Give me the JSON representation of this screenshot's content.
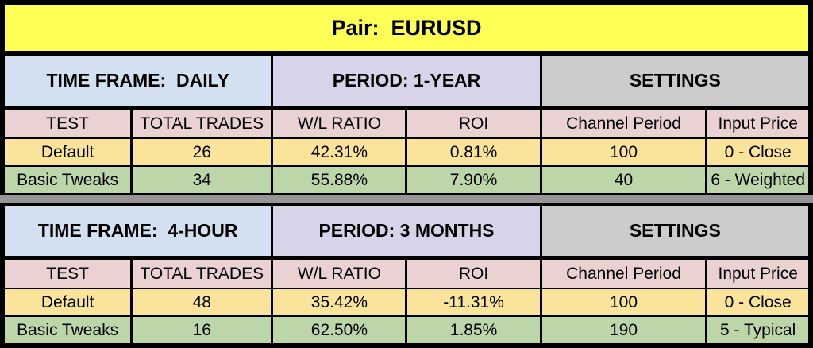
{
  "chart_data": {
    "type": "table",
    "title": "Pair:  EURUSD",
    "sections": [
      {
        "headers": {
          "time_frame": "TIME FRAME:  DAILY",
          "period": "PERIOD: 1-YEAR",
          "settings": "SETTINGS"
        },
        "columns": [
          "TEST",
          "TOTAL TRADES",
          "W/L RATIO",
          "ROI",
          "Channel Period",
          "Input Price"
        ],
        "rows": [
          {
            "test": "Default",
            "total_trades": "26",
            "wl_ratio": "42.31%",
            "roi": "0.81%",
            "channel_period": "100",
            "input_price": "0 - Close"
          },
          {
            "test": "Basic Tweaks",
            "total_trades": "34",
            "wl_ratio": "55.88%",
            "roi": "7.90%",
            "channel_period": "40",
            "input_price": "6 - Weighted"
          }
        ]
      },
      {
        "headers": {
          "time_frame": "TIME FRAME:  4-HOUR",
          "period": "PERIOD: 3 MONTHS",
          "settings": "SETTINGS"
        },
        "columns": [
          "TEST",
          "TOTAL TRADES",
          "W/L RATIO",
          "ROI",
          "Channel Period",
          "Input Price"
        ],
        "rows": [
          {
            "test": "Default",
            "total_trades": "48",
            "wl_ratio": "35.42%",
            "roi": "-11.31%",
            "channel_period": "100",
            "input_price": "0 - Close"
          },
          {
            "test": "Basic Tweaks",
            "total_trades": "16",
            "wl_ratio": "62.50%",
            "roi": "1.85%",
            "channel_period": "190",
            "input_price": "5 - Typical"
          }
        ]
      }
    ]
  },
  "colors": {
    "title_bg": "#FFFF55",
    "time_frame_bg": "#D3E0F0",
    "period_bg": "#D7D3E8",
    "settings_bg": "#CBCBCB",
    "column_header_bg": "#EBD2D2",
    "default_row_bg": "#FAE49B",
    "basic_tweaks_row_bg": "#BCD6AA",
    "divider_bg": "#969696",
    "border": "#000000"
  }
}
